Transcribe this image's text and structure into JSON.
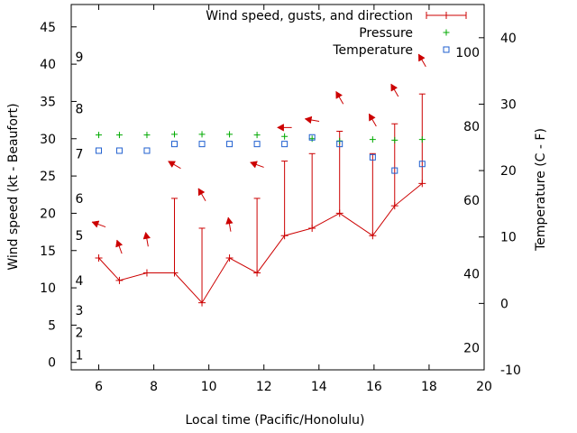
{
  "chart_data": {
    "type": "line",
    "title": "",
    "xlabel": "Local time (Pacific/Honolulu)",
    "ylabel_left": "Wind speed (kt - Beaufort)",
    "ylabel_right": "Temperature (C - F)",
    "xlim": [
      5,
      20
    ],
    "ylim_left": [
      -1,
      48
    ],
    "ylim_right": [
      -10,
      45
    ],
    "x_ticks": [
      6,
      8,
      10,
      12,
      14,
      16,
      18,
      20
    ],
    "y_ticks_left": [
      0,
      5,
      10,
      15,
      20,
      25,
      30,
      35,
      40,
      45
    ],
    "y_ticks_right_celsius": [
      -10,
      0,
      10,
      20,
      30,
      40
    ],
    "y_ticks_right_fahrenheit": [
      20,
      40,
      60,
      80,
      100
    ],
    "beaufort_ticks": [
      {
        "label": "1",
        "knots": 1
      },
      {
        "label": "2",
        "knots": 4
      },
      {
        "label": "3",
        "knots": 7
      },
      {
        "label": "4",
        "knots": 11
      },
      {
        "label": "5",
        "knots": 17
      },
      {
        "label": "6",
        "knots": 22
      },
      {
        "label": "7",
        "knots": 28
      },
      {
        "label": "8",
        "knots": 34
      },
      {
        "label": "9",
        "knots": 41
      }
    ],
    "legend": [
      {
        "label": "Wind speed, gusts, and direction",
        "color": "#cc0000"
      },
      {
        "label": "Pressure",
        "color": "#00aa00"
      },
      {
        "label": "Temperature",
        "color": "#1f5fcf"
      }
    ],
    "series": [
      {
        "name": "Wind speed",
        "x": [
          6,
          6.75,
          7.75,
          8.75,
          9.75,
          10.75,
          11.75,
          12.75,
          13.75,
          14.75,
          15.95,
          16.75,
          17.75
        ],
        "speed": [
          14,
          11,
          12,
          12,
          8,
          14,
          12,
          17,
          18,
          20,
          17,
          21,
          24
        ],
        "gust": [
          14,
          11,
          12,
          22,
          18,
          14,
          22,
          27,
          28,
          31,
          28,
          32,
          36
        ],
        "direction_deg": [
          110,
          160,
          170,
          120,
          150,
          170,
          110,
          90,
          100,
          150,
          150,
          150,
          150
        ]
      },
      {
        "name": "Pressure",
        "x": [
          6,
          6.75,
          7.75,
          8.75,
          9.75,
          10.75,
          11.75,
          12.75,
          13.75,
          14.75,
          15.95,
          16.75,
          17.75
        ],
        "y": [
          30.5,
          30.5,
          30.5,
          30.6,
          30.6,
          30.6,
          30.5,
          30.3,
          30.0,
          29.7,
          29.9,
          29.8,
          29.9
        ]
      },
      {
        "name": "Temperature",
        "x": [
          6,
          6.75,
          7.75,
          8.75,
          9.75,
          10.75,
          11.75,
          12.75,
          13.75,
          14.75,
          15.95,
          16.75,
          17.75
        ],
        "y_celsius": [
          23.0,
          23.0,
          23.0,
          24.0,
          24.0,
          24.0,
          24.0,
          24.0,
          25.0,
          24.0,
          22.0,
          20.0,
          21.0
        ]
      }
    ]
  }
}
